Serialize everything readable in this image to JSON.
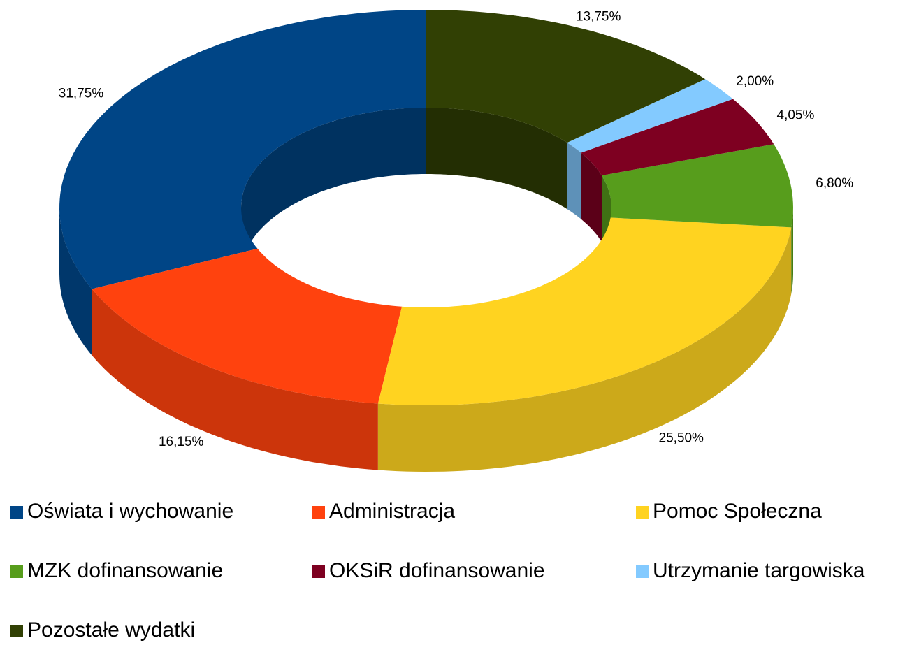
{
  "chart_data": {
    "type": "donut3d",
    "categories": [
      "Oświata i wychowanie",
      "Administracja",
      "Pomoc Społeczna",
      "MZK dofinansowanie",
      "OKSiR dofinansowanie",
      "Utrzymanie targowiska",
      "Pozostałe wydatki"
    ],
    "values": [
      31.75,
      16.15,
      25.5,
      6.8,
      4.05,
      2.0,
      13.75
    ],
    "value_labels": [
      "31,75%",
      "16,15%",
      "25,50%",
      "6,80%",
      "4,05%",
      "2,00%",
      "13,75%"
    ],
    "colors": [
      "#004586",
      "#ff420e",
      "#ffd320",
      "#579d1c",
      "#7e0021",
      "#83caff",
      "#314004"
    ],
    "legend": "bottom"
  }
}
